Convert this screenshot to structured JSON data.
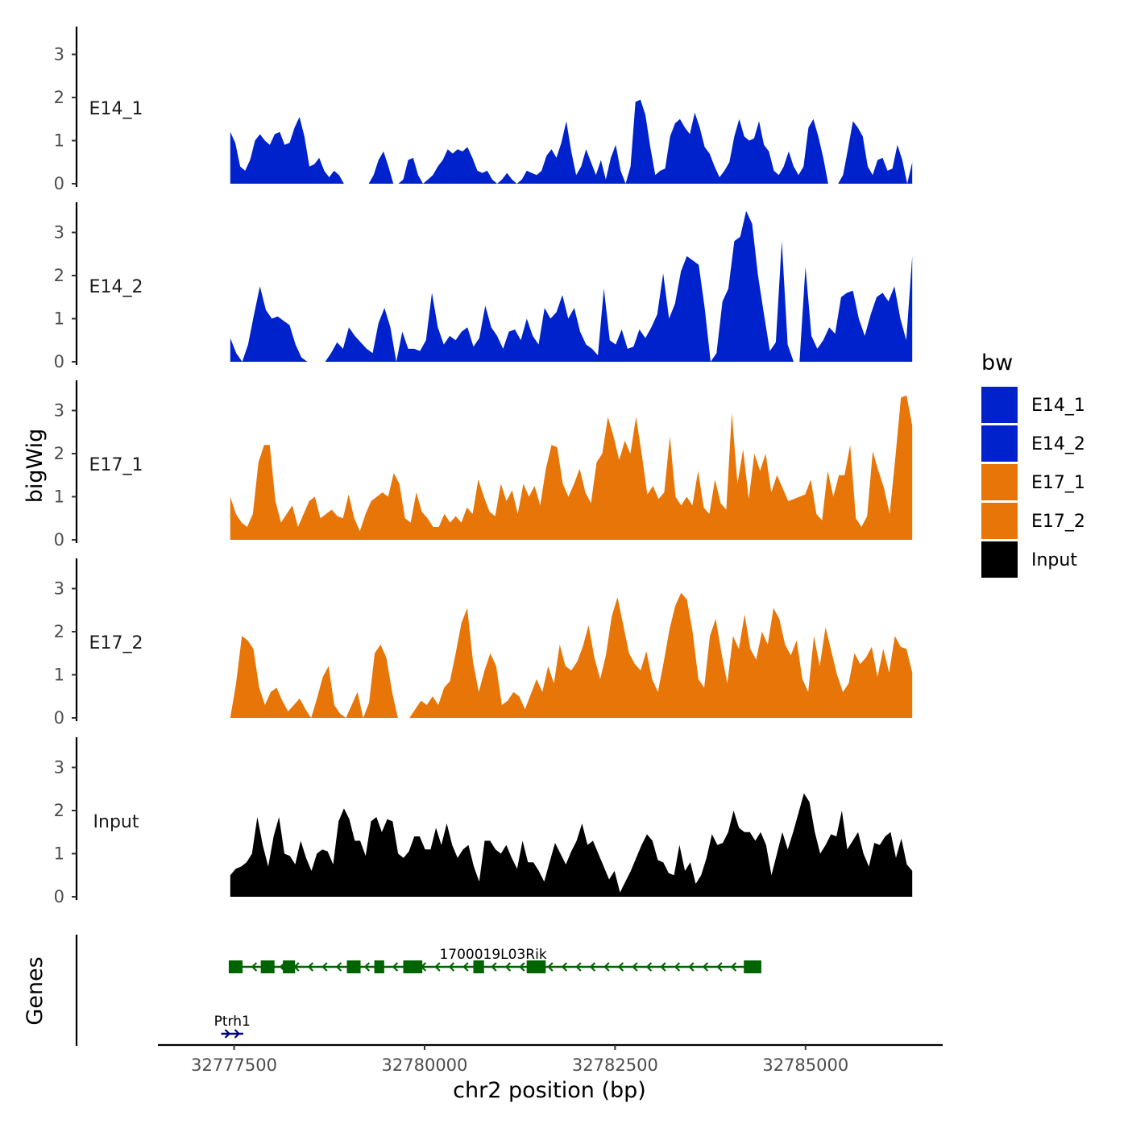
{
  "chart_data": {
    "type": "area",
    "ylabel": "bigWig",
    "genes_label": "Genes",
    "xlabel": "chr2 position (bp)",
    "xlim": [
      32776500,
      32786800
    ],
    "region": [
      32777450,
      32786400
    ],
    "x_ticks": [
      32777500,
      32780000,
      32782500,
      32785000
    ],
    "x_tick_labels": [
      "32777500",
      "32780000",
      "32782500",
      "32785000"
    ],
    "ylim": [
      0,
      3.6
    ],
    "y_ticks": [
      0,
      1,
      2,
      3
    ],
    "y_tick_labels": [
      "0",
      "1",
      "2",
      "3"
    ],
    "legend": {
      "title": "bw",
      "entries": [
        {
          "label": "E14_1",
          "color": "#0022cc"
        },
        {
          "label": "E14_2",
          "color": "#0022cc"
        },
        {
          "label": "E17_1",
          "color": "#e87507"
        },
        {
          "label": "E17_2",
          "color": "#e87507"
        },
        {
          "label": "Input",
          "color": "#000000"
        }
      ]
    },
    "series": [
      {
        "name": "E14_1",
        "color": "#0022cc",
        "values": [
          1.2,
          0.95,
          0.4,
          0.3,
          0.55,
          1.0,
          1.15,
          1.0,
          0.9,
          1.15,
          1.2,
          0.9,
          0.95,
          1.3,
          1.55,
          1.1,
          0.4,
          0.45,
          0.6,
          0.3,
          0.15,
          0.3,
          0.2,
          0,
          0,
          0,
          0,
          0,
          0,
          0.2,
          0.55,
          0.75,
          0.4,
          0,
          0,
          0.1,
          0.55,
          0.6,
          0.2,
          0,
          0.1,
          0.2,
          0.4,
          0.55,
          0.8,
          0.7,
          0.8,
          0.75,
          0.85,
          0.6,
          0.3,
          0.25,
          0.3,
          0.1,
          0,
          0.1,
          0.25,
          0.1,
          0,
          0.1,
          0.3,
          0.25,
          0.2,
          0.3,
          0.65,
          0.8,
          0.6,
          0.95,
          1.45,
          0.75,
          0.2,
          0.4,
          0.8,
          0.5,
          0.2,
          0.55,
          0.1,
          0.6,
          0.9,
          0.3,
          0,
          0.4,
          1.9,
          1.95,
          1.6,
          0.85,
          0.2,
          0.3,
          0.35,
          1.1,
          1.4,
          1.5,
          1.3,
          1.15,
          1.65,
          1.3,
          0.85,
          0.7,
          0.4,
          0.15,
          0.3,
          0.5,
          1.1,
          1.5,
          1.1,
          1.0,
          1.05,
          1.45,
          0.9,
          0.75,
          0.3,
          0.2,
          0.4,
          0.75,
          0.4,
          0.2,
          0.4,
          1.3,
          1.5,
          1.1,
          0.6,
          0,
          0,
          0,
          0.2,
          0.8,
          1.45,
          1.3,
          1.1,
          0.4,
          0.2,
          0.55,
          0.6,
          0.3,
          0.35,
          0.9,
          0.55,
          0,
          0.5
        ]
      },
      {
        "name": "E14_2",
        "color": "#0022cc",
        "values": [
          0.55,
          0.2,
          0,
          0.4,
          1.1,
          1.75,
          1.2,
          1.0,
          1.05,
          0.95,
          0.85,
          0.4,
          0.1,
          0,
          0,
          0,
          0,
          0.2,
          0.45,
          0.3,
          0.8,
          0.6,
          0.45,
          0.3,
          0.2,
          0.9,
          1.25,
          0.8,
          0,
          0.7,
          0.3,
          0.3,
          0.25,
          0.5,
          1.6,
          0.8,
          0.4,
          0.6,
          0.5,
          0.7,
          0.8,
          0.35,
          0.55,
          1.3,
          0.8,
          0.6,
          0.3,
          0.7,
          0.75,
          0.5,
          1.0,
          0.6,
          0.4,
          1.25,
          1.0,
          1.15,
          1.55,
          1.0,
          1.25,
          0.7,
          0.4,
          0.3,
          0.15,
          1.7,
          0.5,
          0.4,
          0.75,
          0.3,
          0.35,
          0.75,
          0.55,
          0.8,
          1.1,
          2.05,
          1.0,
          1.35,
          2.1,
          2.45,
          2.35,
          2.25,
          1.25,
          0,
          0.2,
          1.4,
          1.7,
          2.8,
          2.9,
          3.5,
          3.2,
          2.0,
          1.1,
          0.25,
          0.45,
          2.8,
          0.4,
          0,
          0,
          2.2,
          0.6,
          0.3,
          0.5,
          0.8,
          0.65,
          1.5,
          1.6,
          1.65,
          1.0,
          0.6,
          1.1,
          1.5,
          1.6,
          1.4,
          1.75,
          1.0,
          0.5,
          2.45
        ]
      },
      {
        "name": "E17_1",
        "color": "#e87507",
        "values": [
          1.0,
          0.6,
          0.4,
          0.3,
          0.6,
          1.8,
          2.2,
          2.2,
          0.9,
          0.4,
          0.6,
          0.8,
          0.3,
          0.6,
          0.9,
          1.0,
          0.5,
          0.6,
          0.7,
          0.55,
          0.5,
          1.05,
          0.5,
          0.2,
          0.6,
          0.9,
          1.0,
          1.1,
          1.0,
          1.55,
          1.3,
          0.5,
          0.4,
          1.1,
          0.65,
          0.5,
          0.3,
          0.3,
          0.6,
          0.4,
          0.55,
          0.4,
          0.75,
          0.6,
          1.4,
          1.0,
          0.65,
          0.55,
          1.3,
          0.9,
          1.15,
          0.6,
          1.3,
          1.0,
          1.25,
          0.8,
          1.65,
          2.2,
          2.15,
          1.3,
          1.0,
          1.3,
          1.65,
          1.1,
          0.85,
          1.8,
          2.0,
          2.85,
          2.4,
          1.85,
          2.3,
          2.0,
          2.85,
          2.0,
          1.05,
          1.25,
          0.95,
          1.1,
          2.4,
          1.0,
          0.8,
          1.0,
          0.8,
          1.6,
          0.75,
          0.6,
          1.4,
          0.85,
          0.7,
          2.95,
          1.3,
          2.1,
          0.95,
          2.0,
          1.6,
          2.0,
          1.1,
          1.5,
          1.2,
          0.9,
          0.95,
          1.0,
          1.05,
          1.4,
          0.6,
          0.45,
          1.6,
          1.0,
          1.5,
          1.5,
          2.2,
          0.5,
          0.3,
          0.55,
          2.05,
          1.6,
          1.2,
          0.6,
          1.9,
          3.3,
          3.35,
          2.65
        ]
      },
      {
        "name": "E17_2",
        "color": "#e87507",
        "values": [
          0,
          0.8,
          1.9,
          1.8,
          1.6,
          0.7,
          0.3,
          0.6,
          0.7,
          0.4,
          0.15,
          0.3,
          0.45,
          0.2,
          0,
          0.45,
          0.95,
          1.2,
          0.3,
          0.1,
          0,
          0.3,
          0.6,
          0,
          0.35,
          1.5,
          1.7,
          1.4,
          0.6,
          0,
          0,
          0,
          0.2,
          0.4,
          0.3,
          0.5,
          0.3,
          0.7,
          0.85,
          1.5,
          2.2,
          2.55,
          1.3,
          0.6,
          1.1,
          1.5,
          1.2,
          0.3,
          0.4,
          0.6,
          0.5,
          0.2,
          0.55,
          0.9,
          0.6,
          1.2,
          0.8,
          1.7,
          1.2,
          1.1,
          1.3,
          1.65,
          2.15,
          1.4,
          0.9,
          1.45,
          2.35,
          2.8,
          2.15,
          1.5,
          1.25,
          1.1,
          1.55,
          0.9,
          0.6,
          1.3,
          2.05,
          2.6,
          2.9,
          2.75,
          2.0,
          0.9,
          0.7,
          1.9,
          2.3,
          1.5,
          0.8,
          1.9,
          1.6,
          2.4,
          1.6,
          1.35,
          2.0,
          1.7,
          2.55,
          2.3,
          1.7,
          1.45,
          1.8,
          0.9,
          0.6,
          1.9,
          1.2,
          2.1,
          1.55,
          1.0,
          0.6,
          0.8,
          1.5,
          1.25,
          1.4,
          1.65,
          0.95,
          1.6,
          1.05,
          1.9,
          1.65,
          1.6,
          1.05
        ]
      },
      {
        "name": "Input",
        "color": "#000000",
        "values": [
          0.5,
          0.65,
          0.7,
          0.8,
          1.0,
          1.85,
          1.2,
          0.7,
          1.4,
          1.85,
          1.0,
          0.95,
          0.75,
          1.3,
          0.9,
          0.6,
          1.0,
          1.1,
          1.05,
          0.75,
          1.75,
          2.05,
          1.8,
          1.3,
          1.3,
          0.95,
          1.75,
          1.85,
          1.5,
          1.8,
          1.75,
          1.0,
          0.9,
          1.05,
          1.4,
          1.4,
          1.1,
          1.1,
          1.6,
          1.2,
          1.7,
          1.2,
          0.9,
          1.1,
          1.2,
          0.7,
          0.35,
          1.3,
          1.3,
          1.1,
          1.0,
          1.2,
          0.9,
          0.65,
          1.3,
          0.8,
          0.8,
          0.6,
          0.35,
          0.8,
          1.25,
          1.0,
          0.75,
          1.05,
          1.3,
          1.7,
          1.2,
          1.3,
          1.0,
          0.7,
          0.4,
          0.6,
          0.1,
          0.35,
          0.6,
          0.9,
          1.2,
          1.45,
          1.3,
          0.85,
          0.8,
          0.55,
          0.5,
          1.2,
          0.6,
          0.8,
          0.3,
          0.5,
          0.9,
          1.45,
          1.2,
          1.25,
          1.5,
          2.0,
          1.6,
          1.5,
          1.5,
          1.3,
          1.5,
          1.2,
          0.5,
          1.0,
          1.5,
          1.1,
          1.5,
          1.95,
          2.4,
          2.2,
          1.5,
          1.0,
          1.2,
          1.45,
          1.4,
          2.0,
          1.1,
          1.3,
          1.5,
          1.0,
          0.7,
          1.25,
          1.2,
          1.4,
          1.5,
          0.9,
          1.35,
          0.75,
          0.6
        ]
      }
    ],
    "genes": [
      {
        "name": "1700019L03Rik",
        "color": "#006400",
        "strand": "-",
        "start": 32777450,
        "end": 32784400,
        "exons": [
          [
            32777430,
            32777610
          ],
          [
            32777850,
            32778030
          ],
          [
            32778140,
            32778300
          ],
          [
            32778980,
            32779160
          ],
          [
            32779340,
            32779470
          ],
          [
            32779720,
            32779970
          ],
          [
            32780640,
            32780780
          ],
          [
            32781340,
            32781590
          ],
          [
            32784190,
            32784420
          ]
        ]
      },
      {
        "name": "Ptrh1",
        "color": "#000080",
        "strand": "+",
        "start": 32777330,
        "end": 32777620,
        "exons": []
      }
    ]
  }
}
